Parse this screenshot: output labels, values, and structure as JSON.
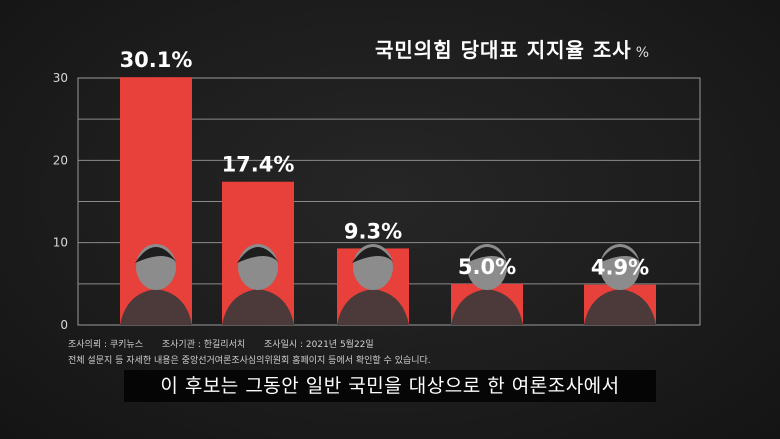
{
  "chart_data": {
    "type": "bar",
    "title": "국민의힘 당대표 지지율 조사",
    "unit": "%",
    "categories": [
      "",
      "",
      "",
      "",
      ""
    ],
    "values": [
      30.1,
      17.4,
      9.3,
      5.0,
      4.9
    ],
    "data_labels": [
      "30.1%",
      "17.4%",
      "9.3%",
      "5.0%",
      "4.9%"
    ],
    "ylim": [
      0,
      30
    ],
    "yticks": [
      "0",
      "10",
      "20",
      "30"
    ],
    "grid": true,
    "bar_color": "#e8403a"
  },
  "source": {
    "client": "조사의뢰 : 쿠키뉴스",
    "agency": "조사기관 : 한길리서치",
    "date": "조사일시 : 2021년 5월22일",
    "note": "전체 설문지 등 자세한 내용은 중앙선거여론조사심의위원회 홈페이지 등에서 확인할 수 있습니다."
  },
  "subtitle": "이 후보는 그동안 일반 국민을 대상으로 한 여론조사에서"
}
